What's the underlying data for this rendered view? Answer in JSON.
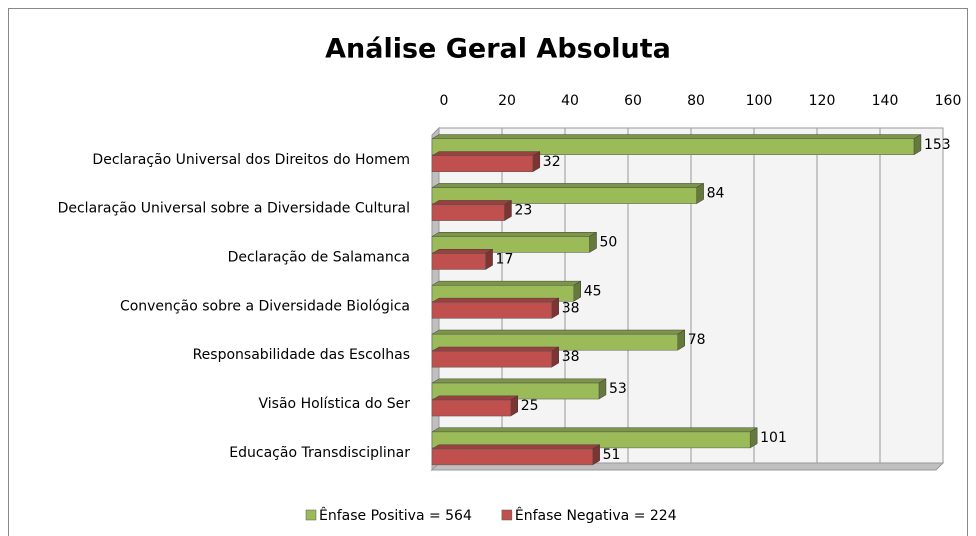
{
  "chart_data": {
    "type": "bar",
    "orientation": "horizontal",
    "title": "Análise Geral Absoluta",
    "categories": [
      "Declaração Universal dos Direitos do Homem",
      "Declaração Universal sobre a Diversidade Cultural",
      "Declaração de Salamanca",
      "Convenção sobre a Diversidade Biológica",
      "Responsabilidade das Escolhas",
      "Visão Holística do Ser",
      "Educação Transdisciplinar"
    ],
    "series": [
      {
        "name": "Ênfase Positiva = 564",
        "color": "#9bbb59",
        "values": [
          153,
          84,
          50,
          45,
          78,
          53,
          101
        ]
      },
      {
        "name": "Ênfase Negativa = 224",
        "color": "#c0504d",
        "values": [
          32,
          23,
          17,
          38,
          38,
          25,
          51
        ]
      }
    ],
    "xlim": [
      0,
      160
    ],
    "xticks": [
      0,
      20,
      40,
      60,
      80,
      100,
      120,
      140,
      160
    ],
    "grid": true,
    "legend": "bottom"
  }
}
